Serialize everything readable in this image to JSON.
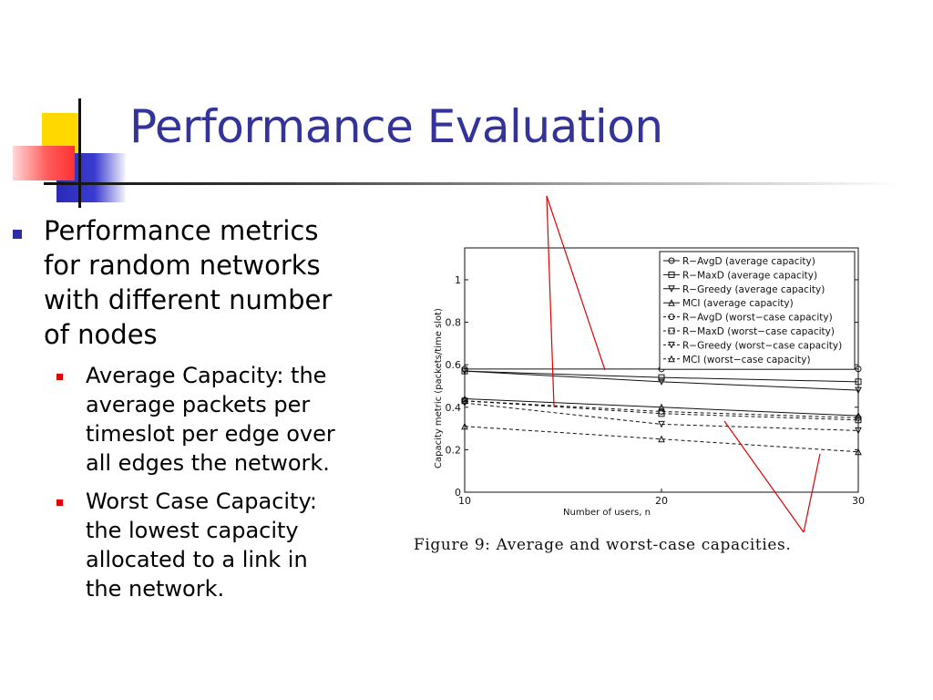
{
  "slide": {
    "title": "Performance Evaluation",
    "bullet": {
      "text": "Performance metrics\nfor random networks\nwith different number\nof nodes",
      "sub_bullets": [
        "Average Capacity: the\naverage packets per\ntimeslot per edge over\nall edges the network.",
        "Worst Case Capacity:\nthe lowest capacity\nallocated to a link in\nthe network."
      ]
    },
    "caption": "Figure 9:  Average and worst-case capacities."
  },
  "colors": {
    "title": "#333399",
    "bullet_marker": "#2d2da6",
    "sub_bullet_marker": "#e00000",
    "annotation_line": "#e00000",
    "deco_yellow": "#ffd800",
    "deco_blue": "#2a2ab8",
    "deco_red": "#ff3030"
  },
  "chart_data": {
    "type": "line",
    "xlabel": "Number of users, n",
    "ylabel": "Capacity metric (packets/time slot)",
    "xlim": [
      10,
      30
    ],
    "ylim": [
      0,
      1.15
    ],
    "x_ticks": [
      "10",
      "20",
      "30"
    ],
    "y_ticks": [
      "0",
      "0.2",
      "0.4",
      "0.6",
      "0.8",
      "1"
    ],
    "legend_position": "top-right",
    "grid": false,
    "x": [
      10,
      20,
      30
    ],
    "series": [
      {
        "name": "R−AvgD (average capacity)",
        "values": [
          0.58,
          0.58,
          0.58
        ],
        "marker": "circle",
        "dash": "solid"
      },
      {
        "name": "R−MaxD (average capacity)",
        "values": [
          0.57,
          0.54,
          0.52
        ],
        "marker": "square",
        "dash": "solid"
      },
      {
        "name": "R−Greedy (average capacity)",
        "values": [
          0.57,
          0.52,
          0.48
        ],
        "marker": "triangle-down",
        "dash": "solid"
      },
      {
        "name": "MCI (average capacity)",
        "values": [
          0.44,
          0.4,
          0.36
        ],
        "marker": "triangle-up",
        "dash": "solid"
      },
      {
        "name": "R−AvgD (worst−case capacity)",
        "values": [
          0.43,
          0.38,
          0.35
        ],
        "marker": "circle",
        "dash": "dashed"
      },
      {
        "name": "R−MaxD (worst−case capacity)",
        "values": [
          0.43,
          0.37,
          0.34
        ],
        "marker": "square",
        "dash": "dashed"
      },
      {
        "name": "R−Greedy (worst−case capacity)",
        "values": [
          0.42,
          0.32,
          0.29
        ],
        "marker": "triangle-down",
        "dash": "dashed"
      },
      {
        "name": "MCI (worst−case capacity)",
        "values": [
          0.31,
          0.25,
          0.19
        ],
        "marker": "triangle-up",
        "dash": "dashed"
      }
    ]
  }
}
